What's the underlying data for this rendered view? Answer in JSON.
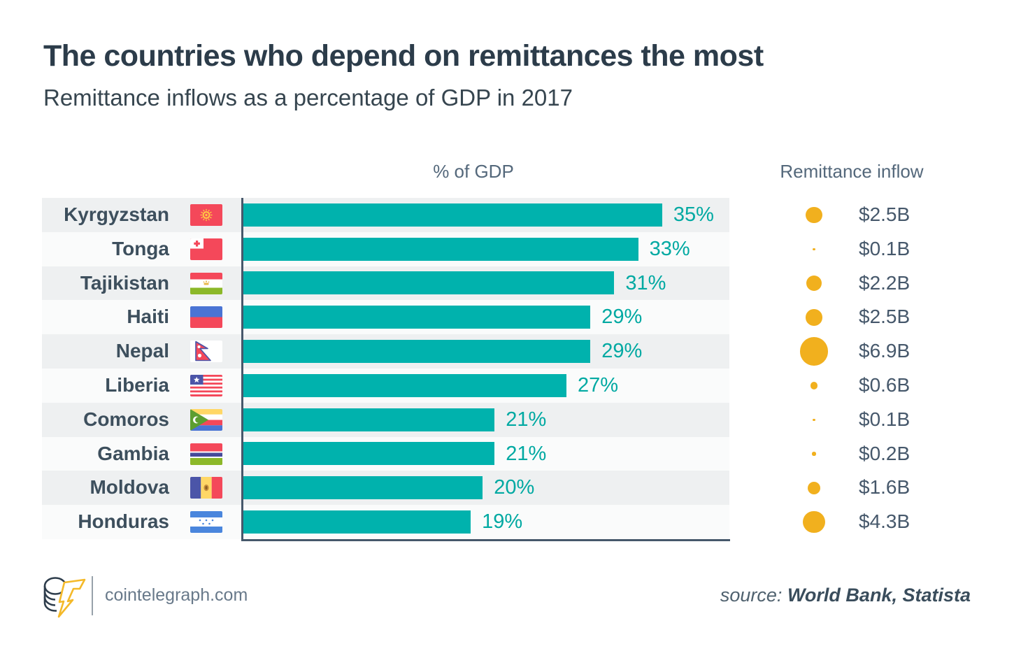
{
  "title": "The countries who depend on remittances the most",
  "subtitle": "Remittance inflows as a percentage of GDP in 2017",
  "columns": {
    "gdp_header": "% of GDP",
    "inflow_header": "Remittance inflow"
  },
  "footer": {
    "site": "cointelegraph.com",
    "source_label": "source:",
    "source_value": "World Bank, Statista"
  },
  "colors": {
    "bar": "#00b2ad",
    "percent_text": "#00a9a2",
    "bubble": "#f1b01e",
    "axis": "#46586b",
    "row_shaded": "#eef0f1",
    "row_plain": "#fafbfb",
    "title_text": "#2c3c4a",
    "value_text": "#46586b"
  },
  "chart_data": {
    "type": "bar",
    "orientation": "horizontal",
    "title": "The countries who depend on remittances the most",
    "subtitle": "Remittance inflows as a percentage of GDP in 2017",
    "categories": [
      "Kyrgyzstan",
      "Tonga",
      "Tajikistan",
      "Haiti",
      "Nepal",
      "Liberia",
      "Comoros",
      "Gambia",
      "Moldova",
      "Honduras"
    ],
    "series": [
      {
        "name": "% of GDP",
        "unit": "%",
        "values": [
          35,
          33,
          31,
          29,
          29,
          27,
          21,
          21,
          20,
          19
        ],
        "labels": [
          "35%",
          "33%",
          "31%",
          "29%",
          "29%",
          "27%",
          "21%",
          "21%",
          "20%",
          "19%"
        ]
      },
      {
        "name": "Remittance inflow",
        "unit": "$B",
        "values": [
          2.5,
          0.1,
          2.2,
          2.5,
          6.9,
          0.6,
          0.1,
          0.2,
          1.6,
          4.3
        ],
        "labels": [
          "$2.5B",
          "$0.1B",
          "$2.2B",
          "$2.5B",
          "$6.9B",
          "$0.6B",
          "$0.1B",
          "$0.2B",
          "$1.6B",
          "$4.3B"
        ]
      }
    ],
    "flags": [
      "kyrgyzstan-flag",
      "tonga-flag",
      "tajikistan-flag",
      "haiti-flag",
      "nepal-flag",
      "liberia-flag",
      "comoros-flag",
      "gambia-flag",
      "moldova-flag",
      "honduras-flag"
    ],
    "xlim": [
      0,
      41
    ],
    "grid": false,
    "legend_position": "none",
    "bubble_encoding": "area proportional to remittance inflow ($B)"
  }
}
